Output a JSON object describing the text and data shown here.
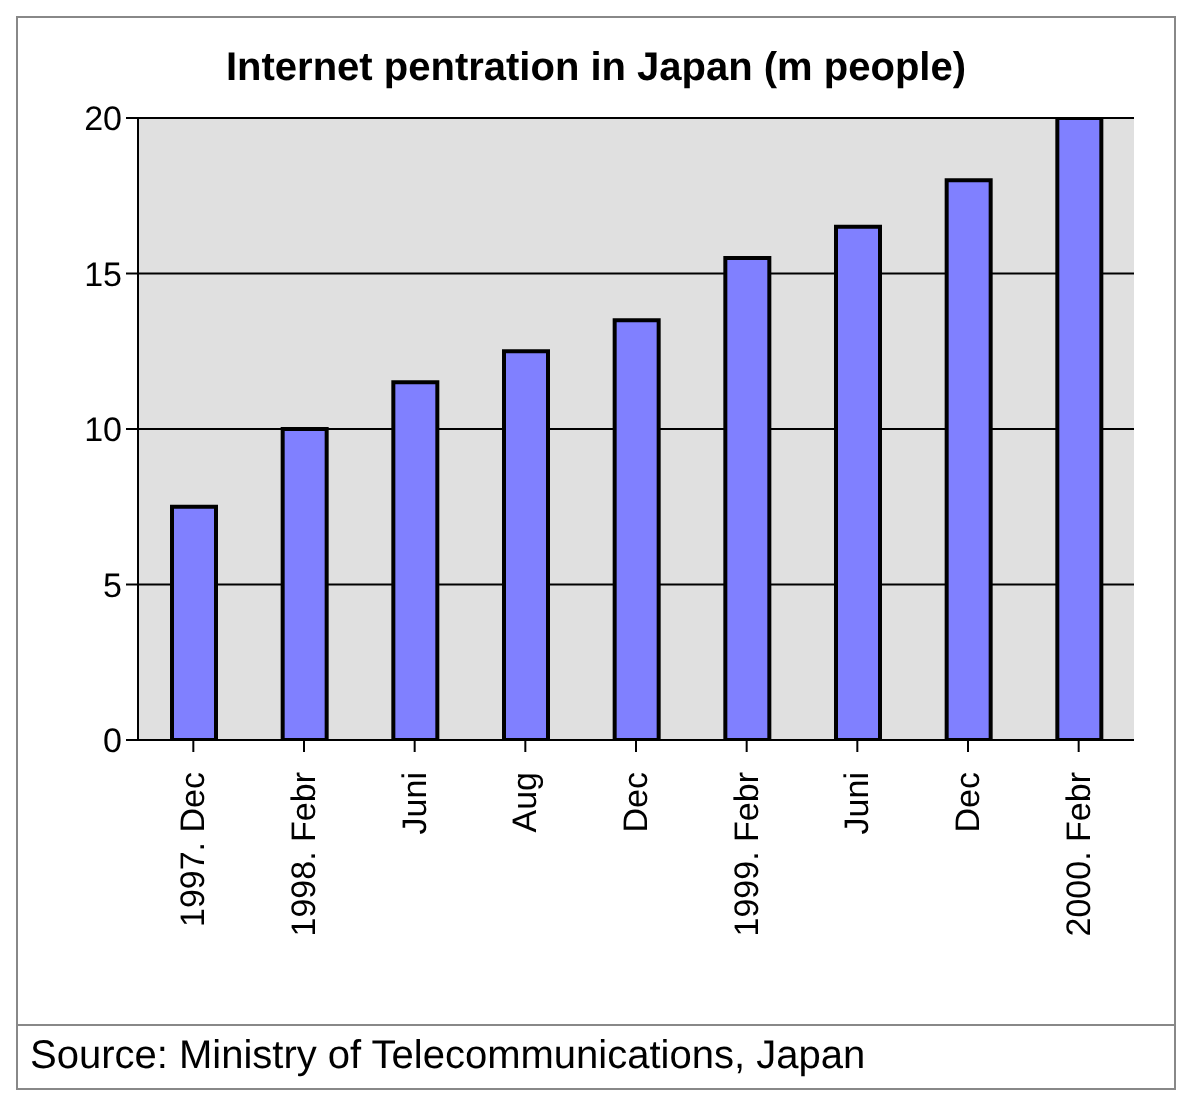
{
  "chart_data": {
    "type": "bar",
    "title": "Internet pentration in Japan (m people)",
    "categories": [
      "1997. Dec",
      "1998. Febr",
      "Juni",
      "Aug",
      "Dec",
      "1999. Febr",
      "Juni",
      "Dec",
      "2000. Febr"
    ],
    "values": [
      7.5,
      10,
      11.5,
      12.5,
      13.5,
      15.5,
      16.5,
      18,
      20
    ],
    "color": "#8080ff",
    "ylim": [
      0,
      20
    ],
    "yticks": [
      0,
      5,
      10,
      15,
      20
    ],
    "grid": "y",
    "annotations": [
      "Source: Ministry of Telecommunications, Japan"
    ]
  }
}
